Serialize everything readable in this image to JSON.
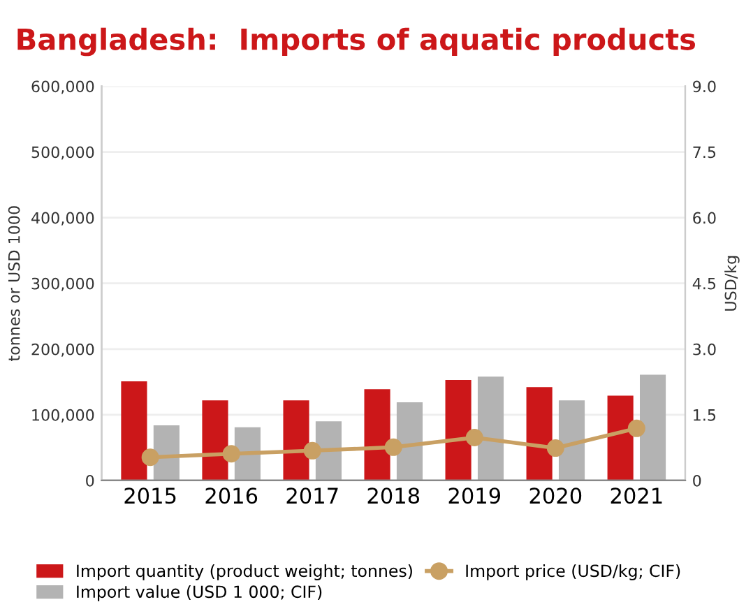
{
  "chart_data": {
    "type": "bar",
    "title": "Bangladesh:  Imports of aquatic products",
    "categories": [
      "2015",
      "2016",
      "2017",
      "2018",
      "2019",
      "2020",
      "2021"
    ],
    "series": [
      {
        "name": "Import quantity (product weight; tonnes)",
        "color": "#cc1719",
        "values": [
          151000,
          122000,
          122000,
          139000,
          153000,
          142000,
          129000
        ]
      },
      {
        "name": "Import value (USD 1 000; CIF)",
        "color": "#b3b3b3",
        "values": [
          84000,
          81000,
          90000,
          119000,
          158000,
          122000,
          161000
        ]
      },
      {
        "name": "Import price (USD/kg; CIF)",
        "type": "line",
        "axis": "y2",
        "color": "#c9a063",
        "marker": "circle",
        "values": [
          0.53,
          0.61,
          0.68,
          0.76,
          0.98,
          0.74,
          1.19
        ]
      }
    ],
    "ylabel": "tonnes or USD 1000",
    "y2label": "USD/kg",
    "ylim": [
      0,
      600000
    ],
    "yticks": [
      {
        "value": 0,
        "label": "0"
      },
      {
        "value": 100000,
        "label": "100,000"
      },
      {
        "value": 200000,
        "label": "200,000"
      },
      {
        "value": 300000,
        "label": "300,000"
      },
      {
        "value": 400000,
        "label": "400,000"
      },
      {
        "value": 500000,
        "label": "500,000"
      },
      {
        "value": 600000,
        "label": "600,000"
      }
    ],
    "y2lim": [
      0,
      9
    ],
    "y2ticks": [
      {
        "value": 0,
        "label": "0"
      },
      {
        "value": 1.5,
        "label": "1.5"
      },
      {
        "value": 3,
        "label": "3.0"
      },
      {
        "value": 4.5,
        "label": "4.5"
      },
      {
        "value": 6,
        "label": "6.0"
      },
      {
        "value": 7.5,
        "label": "7.5"
      },
      {
        "value": 9,
        "label": "9.0"
      }
    ],
    "grid": "y",
    "legend": "bottom"
  }
}
